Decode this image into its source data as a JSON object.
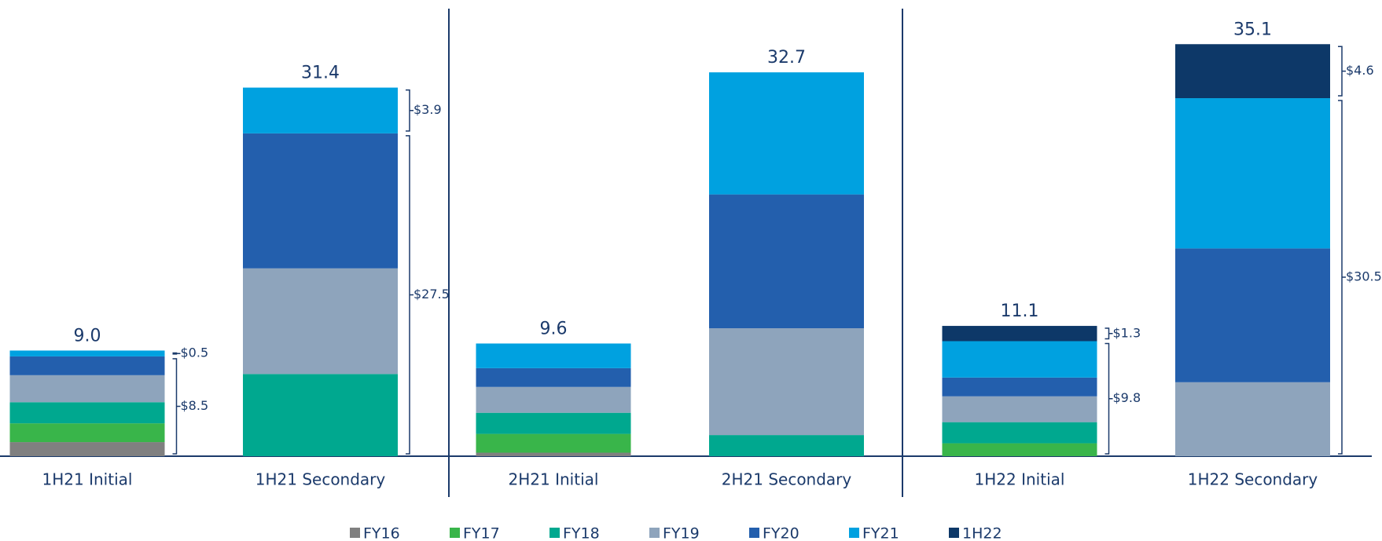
{
  "chart_data": {
    "type": "stacked_bar",
    "categories": [
      "1H21 Initial",
      "1H21 Secondary",
      "2H21 Initial",
      "2H21 Secondary",
      "1H22 Initial",
      "1H22 Secondary"
    ],
    "series": [
      {
        "name": "FY16",
        "color": "#808080",
        "values": [
          1.2,
          null,
          0.3,
          null,
          null,
          null
        ]
      },
      {
        "name": "FY17",
        "color": "#39b54a",
        "values": [
          1.6,
          null,
          1.6,
          null,
          1.1,
          null
        ]
      },
      {
        "name": "FY18",
        "color": "#00a88f",
        "values": [
          1.8,
          7.0,
          1.8,
          1.8,
          1.8,
          null
        ]
      },
      {
        "name": "FY19",
        "color": "#8ea4bc",
        "values": [
          2.3,
          9.0,
          2.2,
          9.1,
          2.2,
          6.3
        ]
      },
      {
        "name": "FY20",
        "color": "#235fad",
        "values": [
          1.6,
          11.5,
          1.6,
          11.4,
          1.6,
          11.4
        ]
      },
      {
        "name": "FY21",
        "color": "#00a1e0",
        "values": [
          0.5,
          3.9,
          2.1,
          10.4,
          3.1,
          12.8
        ]
      },
      {
        "name": "1H22",
        "color": "#0d3868",
        "values": [
          null,
          null,
          null,
          null,
          1.3,
          4.6
        ]
      }
    ],
    "totals": [
      9.0,
      31.4,
      9.6,
      32.7,
      11.1,
      35.1
    ],
    "total_labels": [
      "9.0",
      "31.4",
      "9.6",
      "32.7",
      "11.1",
      "35.1"
    ],
    "brackets": [
      [
        "$8.5",
        "$0.5"
      ],
      [
        "$27.5",
        "$3.9"
      ],
      null,
      null,
      [
        "$9.8",
        "$1.3"
      ],
      [
        "$30.5",
        "$4.6"
      ]
    ],
    "ylim": [
      0,
      36
    ]
  }
}
